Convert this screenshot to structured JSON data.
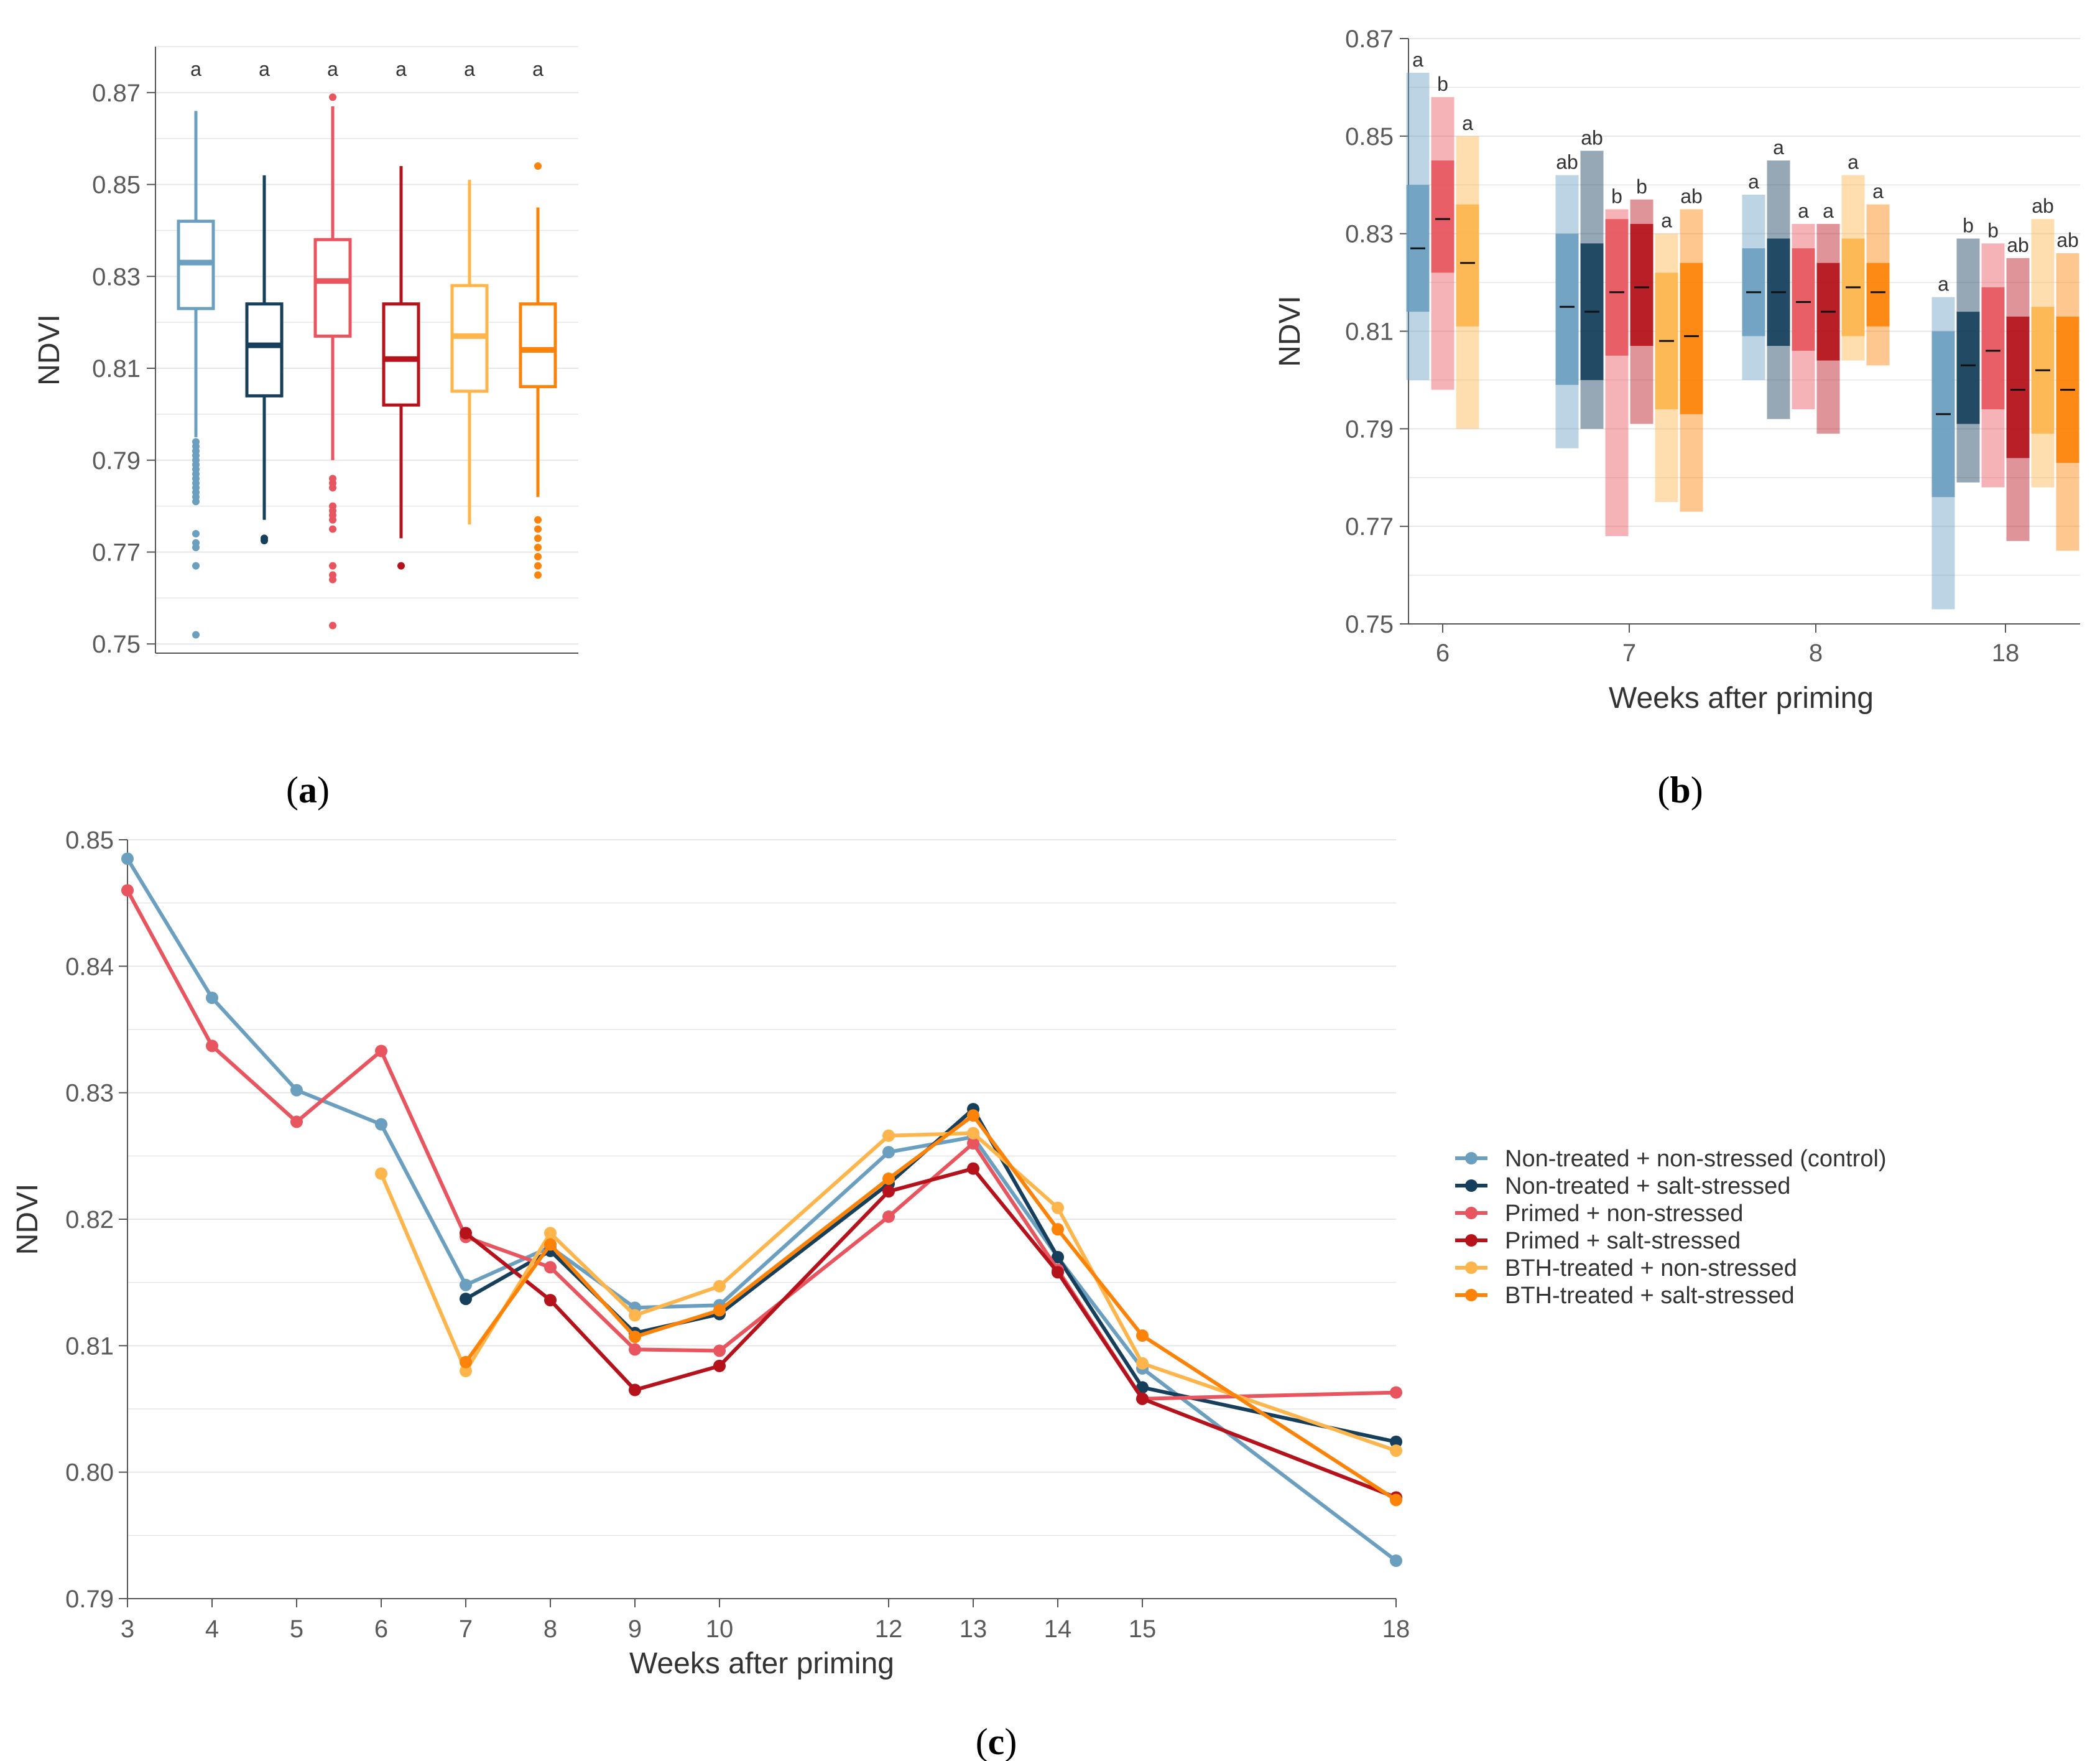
{
  "colors": {
    "nn": "#6a9fc0",
    "ns": "#163f5c",
    "pn": "#e8555f",
    "ps": "#b5121b",
    "bn": "#fdb54c",
    "bs": "#fd8308",
    "grid": "#e6e6e6",
    "axis": "#555555"
  },
  "chart_data": [
    {
      "id": "a",
      "panel_label": "(a)",
      "panel_letter": "a",
      "type": "box",
      "ylabel": "NDVI",
      "ylim": [
        0.748,
        0.88
      ],
      "yticks": [
        "0.75",
        "0.77",
        "0.79",
        "0.81",
        "0.83",
        "0.85",
        "0.87"
      ],
      "groups": [
        {
          "key": "nn",
          "q1": 0.823,
          "median": 0.833,
          "q3": 0.842,
          "whisker_low": 0.795,
          "whisker_high": 0.866,
          "outliers": [
            0.794,
            0.793,
            0.792,
            0.791,
            0.79,
            0.789,
            0.788,
            0.787,
            0.786,
            0.785,
            0.784,
            0.783,
            0.782,
            0.781,
            0.774,
            0.772,
            0.771,
            0.767,
            0.752
          ],
          "sig": "a"
        },
        {
          "key": "ns",
          "q1": 0.804,
          "median": 0.815,
          "q3": 0.824,
          "whisker_low": 0.777,
          "whisker_high": 0.852,
          "outliers": [
            0.773,
            0.7725
          ],
          "sig": "a"
        },
        {
          "key": "pn",
          "q1": 0.817,
          "median": 0.829,
          "q3": 0.838,
          "whisker_low": 0.79,
          "whisker_high": 0.867,
          "outliers": [
            0.869,
            0.786,
            0.785,
            0.784,
            0.78,
            0.779,
            0.778,
            0.777,
            0.775,
            0.767,
            0.765,
            0.764,
            0.754
          ],
          "sig": "a"
        },
        {
          "key": "ps",
          "q1": 0.802,
          "median": 0.812,
          "q3": 0.824,
          "whisker_low": 0.773,
          "whisker_high": 0.854,
          "outliers": [
            0.767
          ],
          "sig": "a"
        },
        {
          "key": "bn",
          "q1": 0.805,
          "median": 0.817,
          "q3": 0.828,
          "whisker_low": 0.776,
          "whisker_high": 0.851,
          "outliers": [],
          "sig": "a"
        },
        {
          "key": "bs",
          "q1": 0.806,
          "median": 0.814,
          "q3": 0.824,
          "whisker_low": 0.782,
          "whisker_high": 0.845,
          "outliers": [
            0.854,
            0.777,
            0.775,
            0.773,
            0.771,
            0.769,
            0.767,
            0.765
          ],
          "sig": "a"
        }
      ]
    },
    {
      "id": "b",
      "panel_label": "(b)",
      "panel_letter": "b",
      "type": "range-bar",
      "ylabel": "NDVI",
      "xlabel": "Weeks after priming",
      "ylim": [
        0.75,
        0.87
      ],
      "yticks": [
        "0.75",
        "0.77",
        "0.79",
        "0.81",
        "0.83",
        "0.85",
        "0.87"
      ],
      "weeks": [
        {
          "label": "6",
          "bars": [
            {
              "key": "nn",
              "min": 0.8,
              "q1": 0.814,
              "median": 0.827,
              "q3": 0.84,
              "max": 0.863,
              "sig": "a"
            },
            {
              "key": "pn",
              "min": 0.798,
              "q1": 0.822,
              "median": 0.833,
              "q3": 0.845,
              "max": 0.858,
              "sig": "b"
            },
            {
              "key": "bn",
              "min": 0.79,
              "q1": 0.811,
              "median": 0.824,
              "q3": 0.836,
              "max": 0.85,
              "sig": "a"
            }
          ]
        },
        {
          "label": "7",
          "bars": [
            {
              "key": "nn",
              "min": 0.786,
              "q1": 0.799,
              "median": 0.815,
              "q3": 0.83,
              "max": 0.842,
              "sig": "ab"
            },
            {
              "key": "ns",
              "min": 0.79,
              "q1": 0.8,
              "median": 0.814,
              "q3": 0.828,
              "max": 0.847,
              "sig": "ab"
            },
            {
              "key": "pn",
              "min": 0.768,
              "q1": 0.805,
              "median": 0.818,
              "q3": 0.833,
              "max": 0.835,
              "sig": "b"
            },
            {
              "key": "ps",
              "min": 0.791,
              "q1": 0.807,
              "median": 0.819,
              "q3": 0.832,
              "max": 0.837,
              "sig": "b"
            },
            {
              "key": "bn",
              "min": 0.775,
              "q1": 0.794,
              "median": 0.808,
              "q3": 0.822,
              "max": 0.83,
              "sig": "a"
            },
            {
              "key": "bs",
              "min": 0.773,
              "q1": 0.793,
              "median": 0.809,
              "q3": 0.824,
              "max": 0.835,
              "sig": "ab"
            }
          ]
        },
        {
          "label": "8",
          "bars": [
            {
              "key": "nn",
              "min": 0.8,
              "q1": 0.809,
              "median": 0.818,
              "q3": 0.827,
              "max": 0.838,
              "sig": "a"
            },
            {
              "key": "ns",
              "min": 0.792,
              "q1": 0.807,
              "median": 0.818,
              "q3": 0.829,
              "max": 0.845,
              "sig": "a"
            },
            {
              "key": "pn",
              "min": 0.794,
              "q1": 0.806,
              "median": 0.816,
              "q3": 0.827,
              "max": 0.832,
              "sig": "a"
            },
            {
              "key": "ps",
              "min": 0.789,
              "q1": 0.804,
              "median": 0.814,
              "q3": 0.824,
              "max": 0.832,
              "sig": "a"
            },
            {
              "key": "bn",
              "min": 0.804,
              "q1": 0.809,
              "median": 0.819,
              "q3": 0.829,
              "max": 0.842,
              "sig": "a"
            },
            {
              "key": "bs",
              "min": 0.803,
              "q1": 0.811,
              "median": 0.818,
              "q3": 0.824,
              "max": 0.836,
              "sig": "a"
            }
          ]
        },
        {
          "label": "18",
          "bars": [
            {
              "key": "nn",
              "min": 0.753,
              "q1": 0.776,
              "median": 0.793,
              "q3": 0.81,
              "max": 0.817,
              "sig": "a"
            },
            {
              "key": "ns",
              "min": 0.779,
              "q1": 0.791,
              "median": 0.803,
              "q3": 0.814,
              "max": 0.829,
              "sig": "b"
            },
            {
              "key": "pn",
              "min": 0.778,
              "q1": 0.794,
              "median": 0.806,
              "q3": 0.819,
              "max": 0.828,
              "sig": "b"
            },
            {
              "key": "ps",
              "min": 0.767,
              "q1": 0.784,
              "median": 0.798,
              "q3": 0.813,
              "max": 0.825,
              "sig": "ab"
            },
            {
              "key": "bn",
              "min": 0.778,
              "q1": 0.789,
              "median": 0.802,
              "q3": 0.815,
              "max": 0.833,
              "sig": "ab"
            },
            {
              "key": "bs",
              "min": 0.765,
              "q1": 0.783,
              "median": 0.798,
              "q3": 0.813,
              "max": 0.826,
              "sig": "ab"
            }
          ]
        }
      ]
    },
    {
      "id": "c",
      "panel_label": "(c)",
      "panel_letter": "c",
      "type": "line",
      "ylabel": "NDVI",
      "xlabel": "Weeks after priming",
      "xlim": [
        3,
        18
      ],
      "ylim": [
        0.79,
        0.85
      ],
      "xticks": [
        "3",
        "4",
        "5",
        "6",
        "7",
        "8",
        "9",
        "10",
        "12",
        "13",
        "14",
        "15",
        "18"
      ],
      "yticks": [
        "0.79",
        "0.80",
        "0.81",
        "0.82",
        "0.83",
        "0.84",
        "0.85"
      ],
      "series": [
        {
          "key": "nn",
          "name": "Non-treated + non-stressed (control)",
          "x": [
            3,
            4,
            5,
            6,
            7,
            8,
            9,
            10,
            12,
            13,
            14,
            15,
            18
          ],
          "y": [
            0.8485,
            0.8375,
            0.8302,
            0.8275,
            0.8148,
            0.8178,
            0.813,
            0.8132,
            0.8253,
            0.8265,
            0.817,
            0.8082,
            0.793
          ]
        },
        {
          "key": "ns",
          "name": "Non-treated + salt-stressed",
          "x": [
            7,
            8,
            9,
            10,
            12,
            13,
            14,
            15,
            18
          ],
          "y": [
            0.8137,
            0.8175,
            0.811,
            0.8125,
            0.8228,
            0.8287,
            0.817,
            0.8067,
            0.8024
          ]
        },
        {
          "key": "pn",
          "name": "Primed + non-stressed",
          "x": [
            3,
            4,
            5,
            6,
            7,
            8,
            9,
            10,
            12,
            13,
            14,
            15,
            18
          ],
          "y": [
            0.846,
            0.8337,
            0.8277,
            0.8333,
            0.8186,
            0.8162,
            0.8097,
            0.8096,
            0.8202,
            0.826,
            0.816,
            0.8058,
            0.8063
          ]
        },
        {
          "key": "ps",
          "name": "Primed + salt-stressed",
          "x": [
            7,
            8,
            9,
            10,
            12,
            13,
            14,
            15,
            18
          ],
          "y": [
            0.8189,
            0.8136,
            0.8065,
            0.8084,
            0.8222,
            0.824,
            0.8158,
            0.8058,
            0.798
          ]
        },
        {
          "key": "bn",
          "name": "BTH-treated + non-stressed",
          "x": [
            6,
            7,
            8,
            9,
            10,
            12,
            13,
            14,
            15,
            18
          ],
          "y": [
            0.8236,
            0.808,
            0.8189,
            0.8124,
            0.8147,
            0.8266,
            0.8268,
            0.8209,
            0.8086,
            0.8017
          ]
        },
        {
          "key": "bs",
          "name": "BTH-treated + salt-stressed",
          "x": [
            7,
            8,
            9,
            10,
            12,
            13,
            14,
            15,
            18
          ],
          "y": [
            0.8087,
            0.818,
            0.8107,
            0.8128,
            0.8232,
            0.8282,
            0.8192,
            0.8108,
            0.7978
          ]
        }
      ]
    }
  ]
}
